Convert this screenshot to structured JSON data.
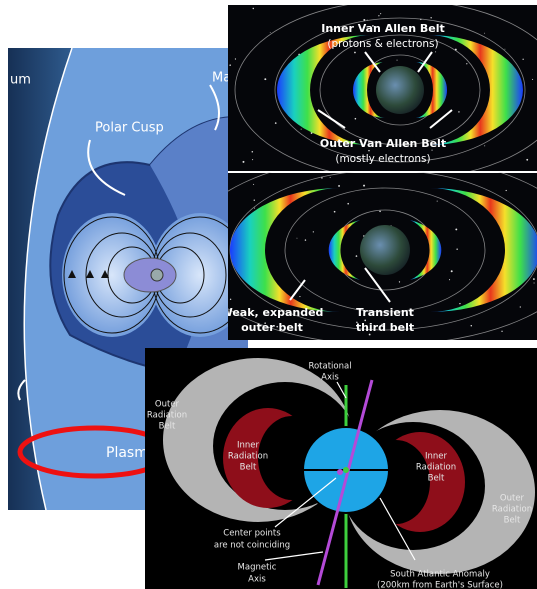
{
  "magnetosphere": {
    "labels": [
      "um",
      "Ma",
      "Polar Cusp",
      "Plasm"
    ]
  },
  "van_allen_top": {
    "labels": [
      [
        "Inner Van Allen Belt",
        "(protons & electrons)"
      ],
      [
        "Outer Van Allen Belt",
        "(mostly electrons)"
      ]
    ]
  },
  "van_allen_bottom": {
    "labels": [
      [
        "Weak, expanded",
        "outer belt"
      ],
      [
        "Transient",
        "third belt"
      ]
    ]
  },
  "radiation_diagram": {
    "labels": [
      [
        "Rotational",
        "Axis"
      ],
      [
        "Outer",
        "Radiation",
        "Belt"
      ],
      [
        "Inner",
        "Radiation",
        "Belt"
      ],
      [
        "Inner",
        "Radiation",
        "Belt"
      ],
      [
        "Outer",
        "Radiation",
        "Belt"
      ],
      [
        "Center points",
        "are not coinciding"
      ],
      [
        "Magnetic",
        "Axis"
      ],
      [
        "South Atlantic Anomaly",
        "(200km from Earth's Surface)"
      ]
    ]
  }
}
